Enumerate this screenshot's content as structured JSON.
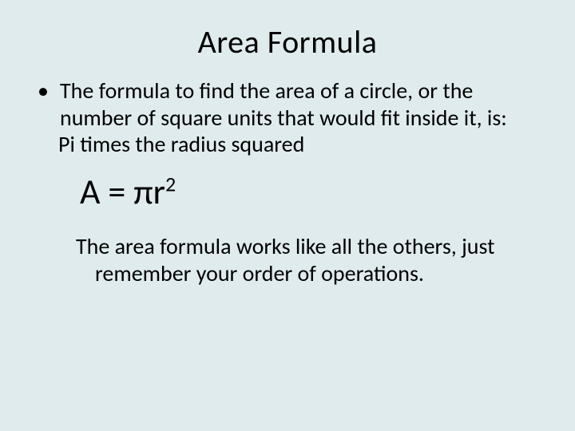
{
  "slide": {
    "background_color": "#dfebed",
    "text_color": "#000000",
    "font_family": "Calibri",
    "title": {
      "text": "Area Formula",
      "fontsize": 40,
      "align": "center"
    },
    "bullet": {
      "marker": "•",
      "text": "The formula to find the area of a circle, or the number of square units that would fit inside it, is:",
      "continuation": "Pi times the radius squared",
      "fontsize": 28
    },
    "formula": {
      "base": "A = πr",
      "exponent": "2",
      "fontsize": 44
    },
    "closing": {
      "text": "The area formula works like all the others, just remember your order of operations.",
      "fontsize": 28
    }
  }
}
